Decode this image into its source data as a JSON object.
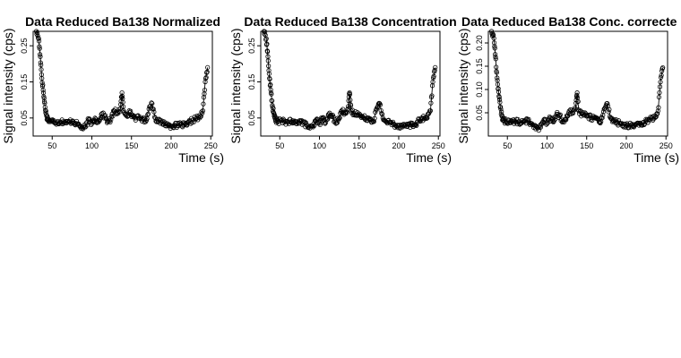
{
  "chart_data": [
    {
      "type": "scatter",
      "title": "Data Reduced Ba138 Normalized",
      "xlabel": "Time (s)",
      "ylabel": "Signal intensity (cps)",
      "xlim": [
        26,
        252
      ],
      "ylim": [
        0.0,
        0.29
      ],
      "xticks": [
        50,
        100,
        150,
        200,
        250
      ],
      "yticks": [
        0.05,
        0.15,
        0.25
      ],
      "grid": false,
      "series": [
        {
          "style": "points-and-line",
          "x": [
            30,
            33,
            35,
            37,
            39,
            41,
            43,
            45,
            48,
            52,
            56,
            60,
            64,
            68,
            72,
            76,
            80,
            84,
            88,
            92,
            96,
            100,
            104,
            108,
            112,
            116,
            120,
            124,
            128,
            132,
            136,
            138,
            140,
            144,
            148,
            152,
            156,
            160,
            164,
            168,
            172,
            176,
            180,
            184,
            188,
            192,
            196,
            200,
            204,
            208,
            212,
            216,
            220,
            224,
            228,
            232,
            236,
            240,
            243,
            246
          ],
          "y": [
            0.29,
            0.27,
            0.22,
            0.16,
            0.12,
            0.08,
            0.055,
            0.045,
            0.04,
            0.043,
            0.038,
            0.04,
            0.04,
            0.036,
            0.04,
            0.042,
            0.035,
            0.03,
            0.022,
            0.025,
            0.045,
            0.035,
            0.05,
            0.038,
            0.06,
            0.055,
            0.04,
            0.045,
            0.07,
            0.065,
            0.075,
            0.12,
            0.07,
            0.06,
            0.065,
            0.055,
            0.05,
            0.05,
            0.048,
            0.04,
            0.075,
            0.09,
            0.05,
            0.04,
            0.038,
            0.035,
            0.03,
            0.028,
            0.03,
            0.028,
            0.032,
            0.03,
            0.03,
            0.04,
            0.045,
            0.05,
            0.05,
            0.07,
            0.15,
            0.19
          ]
        }
      ]
    },
    {
      "type": "scatter",
      "title": "Data Reduced Ba138 Concentration",
      "xlabel": "Time (s)",
      "ylabel": "Signal intensity (cps)",
      "xlim": [
        26,
        252
      ],
      "ylim": [
        0.0,
        0.29
      ],
      "xticks": [
        50,
        100,
        150,
        200,
        250
      ],
      "yticks": [
        0.05,
        0.15,
        0.25
      ],
      "grid": false,
      "series": [
        {
          "style": "points-and-line",
          "x": [
            30,
            33,
            35,
            37,
            39,
            41,
            43,
            45,
            48,
            52,
            56,
            60,
            64,
            68,
            72,
            76,
            80,
            84,
            88,
            92,
            96,
            100,
            104,
            108,
            112,
            116,
            120,
            124,
            128,
            132,
            136,
            138,
            140,
            144,
            148,
            152,
            156,
            160,
            164,
            168,
            172,
            176,
            180,
            184,
            188,
            192,
            196,
            200,
            204,
            208,
            212,
            216,
            220,
            224,
            228,
            232,
            236,
            240,
            243,
            246
          ],
          "y": [
            0.29,
            0.27,
            0.22,
            0.16,
            0.12,
            0.08,
            0.055,
            0.045,
            0.04,
            0.043,
            0.038,
            0.04,
            0.04,
            0.036,
            0.04,
            0.042,
            0.035,
            0.03,
            0.022,
            0.025,
            0.045,
            0.035,
            0.05,
            0.038,
            0.06,
            0.055,
            0.04,
            0.045,
            0.07,
            0.065,
            0.075,
            0.12,
            0.07,
            0.06,
            0.065,
            0.055,
            0.05,
            0.05,
            0.048,
            0.04,
            0.075,
            0.09,
            0.05,
            0.04,
            0.038,
            0.035,
            0.03,
            0.028,
            0.03,
            0.028,
            0.032,
            0.03,
            0.03,
            0.04,
            0.045,
            0.05,
            0.05,
            0.07,
            0.15,
            0.19
          ]
        }
      ]
    },
    {
      "type": "scatter",
      "title": "Data Reduced Ba138 Conc. correcte",
      "xlabel": "Time (s)",
      "ylabel": "Signal intensity (cps)",
      "xlim": [
        26,
        252
      ],
      "ylim": [
        0.0,
        0.225
      ],
      "xticks": [
        50,
        100,
        150,
        200,
        250
      ],
      "yticks": [
        0.05,
        0.1,
        0.15,
        0.2
      ],
      "ytick_labels": [
        "0.05",
        "0.10",
        "0.15",
        "0.20"
      ],
      "grid": false,
      "series": [
        {
          "style": "points-and-line",
          "x": [
            30,
            33,
            35,
            37,
            39,
            41,
            43,
            45,
            48,
            52,
            56,
            60,
            64,
            68,
            72,
            76,
            80,
            84,
            88,
            92,
            96,
            100,
            104,
            108,
            112,
            116,
            120,
            124,
            128,
            132,
            136,
            138,
            140,
            144,
            148,
            152,
            156,
            160,
            164,
            168,
            172,
            176,
            180,
            184,
            188,
            192,
            196,
            200,
            204,
            208,
            212,
            216,
            220,
            224,
            228,
            232,
            236,
            240,
            243,
            246
          ],
          "y": [
            0.225,
            0.21,
            0.17,
            0.125,
            0.095,
            0.062,
            0.043,
            0.035,
            0.031,
            0.033,
            0.03,
            0.031,
            0.031,
            0.028,
            0.031,
            0.033,
            0.027,
            0.023,
            0.017,
            0.019,
            0.035,
            0.027,
            0.039,
            0.03,
            0.047,
            0.043,
            0.031,
            0.035,
            0.054,
            0.05,
            0.058,
            0.093,
            0.054,
            0.047,
            0.05,
            0.043,
            0.039,
            0.039,
            0.037,
            0.031,
            0.058,
            0.07,
            0.039,
            0.031,
            0.03,
            0.027,
            0.023,
            0.022,
            0.023,
            0.022,
            0.025,
            0.023,
            0.023,
            0.031,
            0.035,
            0.039,
            0.039,
            0.054,
            0.116,
            0.147
          ]
        }
      ]
    }
  ]
}
